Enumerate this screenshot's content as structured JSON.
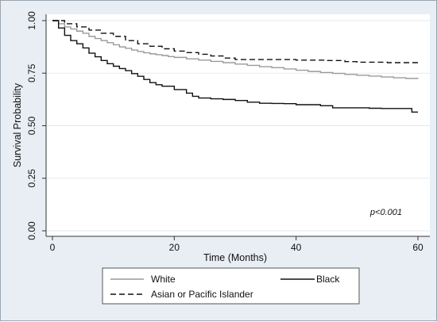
{
  "chart_data": {
    "type": "line",
    "step": true,
    "title": "",
    "xlabel": "Time (Months)",
    "ylabel": "Survival Probability",
    "xlim": [
      0,
      60
    ],
    "ylim": [
      0,
      1
    ],
    "xticks": [
      0,
      20,
      40,
      60
    ],
    "yticks": [
      0.0,
      0.25,
      0.5,
      0.75,
      1.0
    ],
    "ytick_labels": [
      "0.00",
      "0.25",
      "0.50",
      "0.75",
      "1.00"
    ],
    "grid": true,
    "legend": "bottom",
    "annotation": "p<0.001",
    "series": [
      {
        "name": "White",
        "color": "#9a9a9a",
        "dash": "solid",
        "x": [
          0,
          1,
          2,
          3,
          4,
          5,
          6,
          7,
          8,
          9,
          10,
          11,
          12,
          13,
          14,
          15,
          16,
          17,
          18,
          19,
          20,
          22,
          24,
          26,
          28,
          30,
          32,
          34,
          36,
          38,
          40,
          42,
          44,
          46,
          48,
          50,
          52,
          54,
          56,
          58,
          60
        ],
        "y": [
          1.0,
          0.985,
          0.97,
          0.96,
          0.95,
          0.94,
          0.925,
          0.915,
          0.905,
          0.895,
          0.885,
          0.875,
          0.868,
          0.86,
          0.853,
          0.847,
          0.842,
          0.838,
          0.834,
          0.829,
          0.825,
          0.818,
          0.812,
          0.806,
          0.8,
          0.793,
          0.787,
          0.781,
          0.776,
          0.77,
          0.764,
          0.758,
          0.753,
          0.749,
          0.744,
          0.74,
          0.736,
          0.732,
          0.728,
          0.725,
          0.724
        ]
      },
      {
        "name": "Black",
        "color": "#111111",
        "dash": "solid",
        "x": [
          0,
          1,
          2,
          3,
          4,
          5,
          6,
          7,
          8,
          9,
          10,
          11,
          12,
          13,
          14,
          15,
          16,
          17,
          18,
          20,
          22,
          23,
          24,
          26,
          28,
          30,
          32,
          34,
          36,
          38,
          40,
          42,
          44,
          46,
          48,
          50,
          52,
          54,
          56,
          58,
          59,
          60
        ],
        "y": [
          1.0,
          0.965,
          0.93,
          0.905,
          0.89,
          0.87,
          0.845,
          0.828,
          0.81,
          0.795,
          0.783,
          0.772,
          0.762,
          0.748,
          0.735,
          0.72,
          0.705,
          0.695,
          0.688,
          0.672,
          0.655,
          0.64,
          0.632,
          0.628,
          0.625,
          0.62,
          0.612,
          0.607,
          0.606,
          0.605,
          0.6,
          0.6,
          0.595,
          0.585,
          0.585,
          0.585,
          0.583,
          0.582,
          0.582,
          0.582,
          0.565,
          0.565
        ]
      },
      {
        "name": "Asian or Pacific Islander",
        "color": "#111111",
        "dash": "dash",
        "x": [
          0,
          2,
          4,
          6,
          8,
          10,
          12,
          14,
          16,
          18,
          20,
          22,
          24,
          26,
          28,
          30,
          35,
          40,
          45,
          48,
          50,
          55,
          60
        ],
        "y": [
          1.0,
          0.985,
          0.97,
          0.955,
          0.94,
          0.925,
          0.905,
          0.89,
          0.878,
          0.866,
          0.855,
          0.848,
          0.84,
          0.832,
          0.822,
          0.815,
          0.815,
          0.812,
          0.81,
          0.805,
          0.802,
          0.8,
          0.8
        ]
      }
    ]
  }
}
